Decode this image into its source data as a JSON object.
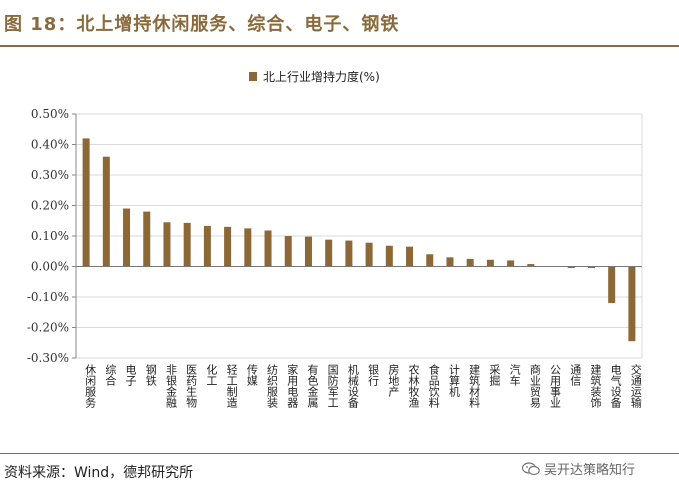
{
  "header": {
    "title": "图 18：北上增持休闲服务、综合、电子、钢铁"
  },
  "footer": {
    "source": "资料来源：Wind，德邦研究所",
    "watermark": "吴开达策略知行"
  },
  "colors": {
    "bar": "#8b6836",
    "accent": "#8a6a3c"
  },
  "chart_data": {
    "type": "bar",
    "title": "",
    "ylim": [
      -0.3,
      0.5
    ],
    "yticks": [
      "0.50%",
      "0.40%",
      "0.30%",
      "0.20%",
      "0.10%",
      "0.00%",
      "-0.10%",
      "-0.20%",
      "-0.30%"
    ],
    "grid": true,
    "legend_position": "top-right",
    "categories": [
      "休闲服务",
      "综合",
      "电子",
      "钢铁",
      "非银金融",
      "医药生物",
      "化工",
      "轻工制造",
      "传媒",
      "纺织服装",
      "家用电器",
      "有色金属",
      "国防军工",
      "机械设备",
      "银行",
      "房地产",
      "农林牧渔",
      "食品饮料",
      "计算机",
      "建筑材料",
      "采掘",
      "汽车",
      "商业贸易",
      "公用事业",
      "通信",
      "建筑装饰",
      "电气设备",
      "交通运输"
    ],
    "series": [
      {
        "name": "北上行业增持力度(%)",
        "values": [
          0.42,
          0.36,
          0.19,
          0.18,
          0.145,
          0.143,
          0.133,
          0.13,
          0.125,
          0.118,
          0.1,
          0.098,
          0.088,
          0.085,
          0.078,
          0.068,
          0.065,
          0.04,
          0.03,
          0.025,
          0.022,
          0.02,
          0.008,
          0.0,
          -0.005,
          -0.005,
          -0.12,
          -0.245
        ]
      }
    ]
  }
}
